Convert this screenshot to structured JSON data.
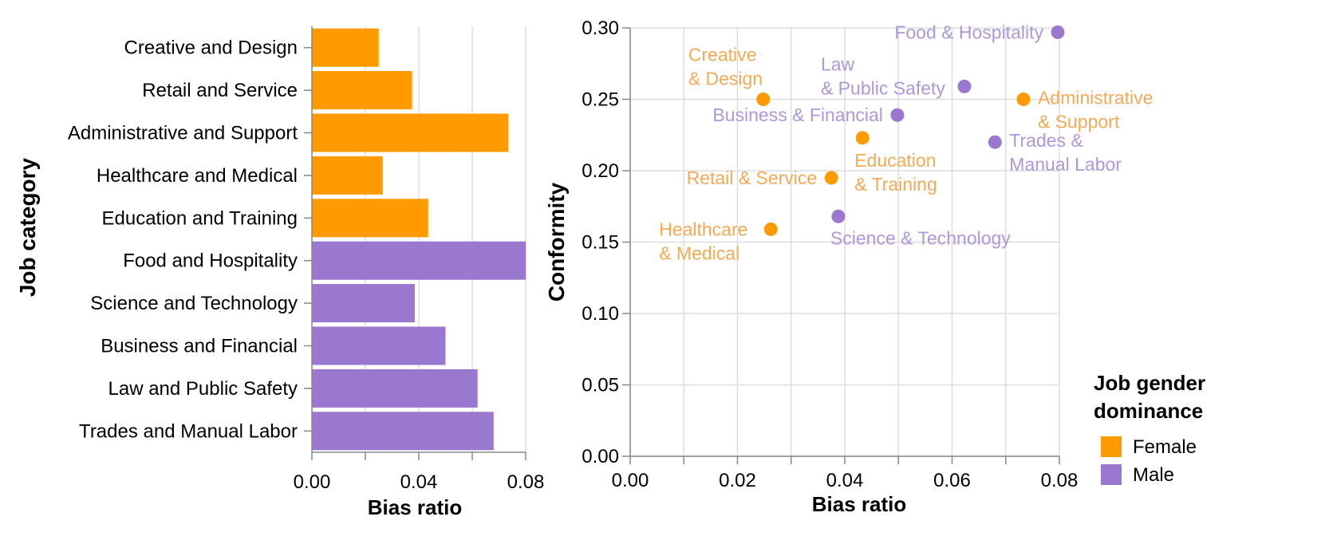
{
  "chart_data": [
    {
      "type": "bar",
      "orientation": "horizontal",
      "title": "",
      "xlabel": "Bias ratio",
      "ylabel": "Job category",
      "xlim": [
        0,
        0.08
      ],
      "xticks": [
        "0.00",
        "0.04",
        "0.08"
      ],
      "categories": [
        "Creative and Design",
        "Retail and Service",
        "Administrative and Support",
        "Healthcare and Medical",
        "Education and Training",
        "Food and Hospitality",
        "Science and Technology",
        "Business and Financial",
        "Law and Public Safety",
        "Trades and Manual Labor"
      ],
      "values": [
        0.025,
        0.0375,
        0.0735,
        0.0265,
        0.0435,
        0.08,
        0.0385,
        0.05,
        0.062,
        0.068
      ],
      "groups": [
        "Female",
        "Female",
        "Female",
        "Female",
        "Female",
        "Male",
        "Male",
        "Male",
        "Male",
        "Male"
      ]
    },
    {
      "type": "scatter",
      "title": "",
      "xlabel": "Bias ratio",
      "ylabel": "Conformity",
      "xlim": [
        0,
        0.08
      ],
      "ylim": [
        0,
        0.3
      ],
      "xticks": [
        "0.00",
        "0.02",
        "0.04",
        "0.06",
        "0.08"
      ],
      "yticks": [
        "0.00",
        "0.05",
        "0.10",
        "0.15",
        "0.20",
        "0.25",
        "0.30"
      ],
      "points": [
        {
          "label": [
            "Creative",
            "& Design"
          ],
          "x": 0.0248,
          "y": 0.25,
          "group": "Female",
          "anchor": "above-left"
        },
        {
          "label": [
            "Retail & Service"
          ],
          "x": 0.0375,
          "y": 0.195,
          "group": "Female",
          "anchor": "left"
        },
        {
          "label": [
            "Administrative",
            "& Support"
          ],
          "x": 0.0733,
          "y": 0.25,
          "group": "Female",
          "anchor": "right"
        },
        {
          "label": [
            "Healthcare",
            "& Medical"
          ],
          "x": 0.0262,
          "y": 0.159,
          "group": "Female",
          "anchor": "left"
        },
        {
          "label": [
            "Education",
            "& Training"
          ],
          "x": 0.0433,
          "y": 0.223,
          "group": "Female",
          "anchor": "below"
        },
        {
          "label": [
            "Food & Hospitality"
          ],
          "x": 0.0797,
          "y": 0.297,
          "group": "Male",
          "anchor": "left"
        },
        {
          "label": [
            "Science & Technology"
          ],
          "x": 0.0388,
          "y": 0.168,
          "group": "Male",
          "anchor": "below"
        },
        {
          "label": [
            "Business & Financial"
          ],
          "x": 0.0498,
          "y": 0.239,
          "group": "Male",
          "anchor": "left"
        },
        {
          "label": [
            "Law",
            "& Public Safety"
          ],
          "x": 0.0623,
          "y": 0.259,
          "group": "Male",
          "anchor": "above-left"
        },
        {
          "label": [
            "Trades &",
            "Manual Labor"
          ],
          "x": 0.068,
          "y": 0.22,
          "group": "Male",
          "anchor": "right"
        }
      ]
    }
  ],
  "legend": {
    "title": [
      "Job gender",
      "dominance"
    ],
    "items": [
      {
        "label": "Female",
        "color": "#FF9B00"
      },
      {
        "label": "Male",
        "color": "#9A78D0"
      }
    ]
  },
  "colors": {
    "Female": "#FF9B00",
    "Male": "#9A78D0",
    "FemaleLabel": "#F4AA55",
    "MaleLabel": "#AE97DC",
    "grid": "#DDDDDD",
    "axis": "#888888",
    "text": "#000000"
  }
}
